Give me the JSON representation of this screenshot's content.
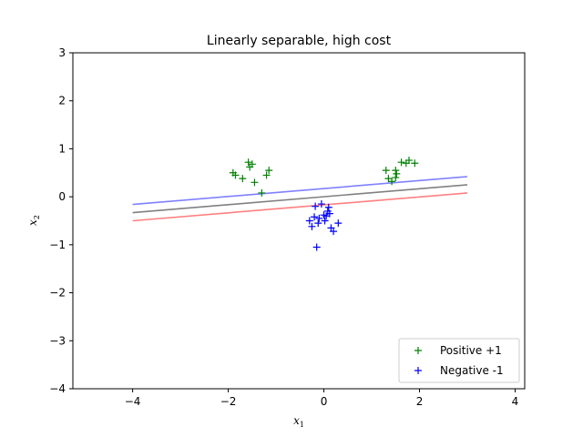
{
  "chart_data": {
    "type": "scatter",
    "title": "Linearly separable, high cost",
    "xlabel": "x",
    "xlabel_sub": "1",
    "ylabel": "x",
    "ylabel_sub": "2",
    "xlim": [
      -5.25,
      4.2
    ],
    "ylim": [
      -4,
      3
    ],
    "xticks": [
      -4,
      -2,
      0,
      2,
      4
    ],
    "yticks": [
      -4,
      -3,
      -2,
      -1,
      0,
      1,
      2,
      3
    ],
    "grid": false,
    "legend_position": "bottom-right",
    "series": [
      {
        "name": "Positive +1",
        "marker": "+",
        "color": "#008000",
        "points": [
          [
            -1.9,
            0.5
          ],
          [
            -1.85,
            0.45
          ],
          [
            -1.7,
            0.38
          ],
          [
            -1.58,
            0.72
          ],
          [
            -1.55,
            0.62
          ],
          [
            -1.5,
            0.68
          ],
          [
            -1.45,
            0.3
          ],
          [
            -1.3,
            0.08
          ],
          [
            -1.2,
            0.45
          ],
          [
            -1.15,
            0.55
          ],
          [
            1.3,
            0.55
          ],
          [
            1.35,
            0.38
          ],
          [
            1.42,
            0.32
          ],
          [
            1.5,
            0.55
          ],
          [
            1.52,
            0.48
          ],
          [
            1.5,
            0.4
          ],
          [
            1.62,
            0.72
          ],
          [
            1.72,
            0.7
          ],
          [
            1.78,
            0.76
          ],
          [
            1.9,
            0.7
          ]
        ]
      },
      {
        "name": "Negative -1",
        "marker": "+",
        "color": "#0000ff",
        "points": [
          [
            -0.3,
            -0.5
          ],
          [
            -0.25,
            -0.62
          ],
          [
            -0.2,
            -0.42
          ],
          [
            -0.18,
            -0.2
          ],
          [
            -0.15,
            -1.05
          ],
          [
            -0.12,
            -0.55
          ],
          [
            -0.1,
            -0.45
          ],
          [
            -0.05,
            -0.15
          ],
          [
            0.0,
            -0.38
          ],
          [
            0.02,
            -0.5
          ],
          [
            0.05,
            -0.4
          ],
          [
            0.08,
            -0.3
          ],
          [
            0.1,
            -0.22
          ],
          [
            0.12,
            -0.35
          ],
          [
            0.15,
            -0.65
          ],
          [
            0.2,
            -0.72
          ],
          [
            0.3,
            -0.55
          ]
        ]
      }
    ],
    "lines": [
      {
        "name": "margin-positive",
        "color": "#8080ff",
        "x": [
          -4,
          3
        ],
        "y": [
          -0.16,
          0.42
        ]
      },
      {
        "name": "decision-boundary",
        "color": "#808080",
        "x": [
          -4,
          3
        ],
        "y": [
          -0.33,
          0.25
        ]
      },
      {
        "name": "margin-negative",
        "color": "#ff8080",
        "x": [
          -4,
          3
        ],
        "y": [
          -0.5,
          0.08
        ]
      }
    ]
  }
}
